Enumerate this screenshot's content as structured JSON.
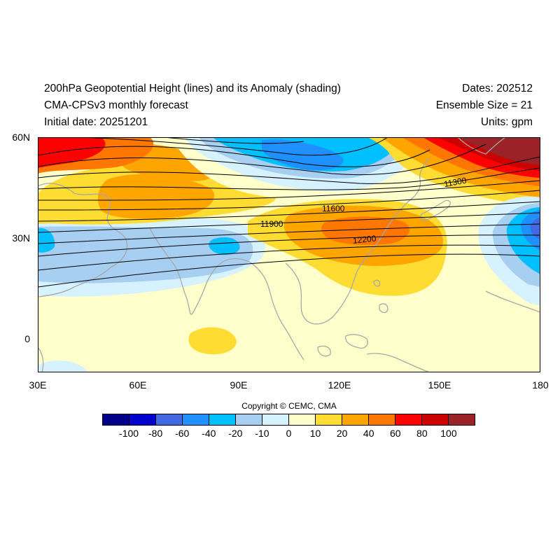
{
  "header": {
    "title": "200hPa Geopotential Height (lines) and its Anomaly (shading)",
    "subtitle": "CMA-CPSv3 monthly forecast",
    "initial": "Initial date: 20251201",
    "dates": "Dates: 202512",
    "ensemble": "Ensemble Size = 21",
    "units": "Units: gpm"
  },
  "map": {
    "lat_labels": [
      "60N",
      "30N",
      "0"
    ],
    "lon_labels": [
      "30E",
      "60E",
      "90E",
      "120E",
      "150E",
      "180"
    ],
    "lon_range": [
      30,
      180
    ],
    "lat_range": [
      -10,
      60
    ],
    "contour_labels": [
      "11300",
      "11600",
      "11900",
      "12200"
    ],
    "contour_line_color": "#000000",
    "coastline_color": "#a8a8a8"
  },
  "copyright": "Copyright © CEMC, CMA",
  "colorbar": {
    "labels": [
      "-100",
      "-80",
      "-60",
      "-40",
      "-20",
      "-10",
      "0",
      "10",
      "20",
      "40",
      "60",
      "80",
      "100"
    ],
    "colors": [
      "#00008b",
      "#0000cd",
      "#4169e1",
      "#1e90ff",
      "#00bfff",
      "#a6cff2",
      "#d6f2ff",
      "#ffffcc",
      "#ffdc32",
      "#ffa500",
      "#ff7700",
      "#ff0000",
      "#cd0000",
      "#9b2226"
    ]
  }
}
